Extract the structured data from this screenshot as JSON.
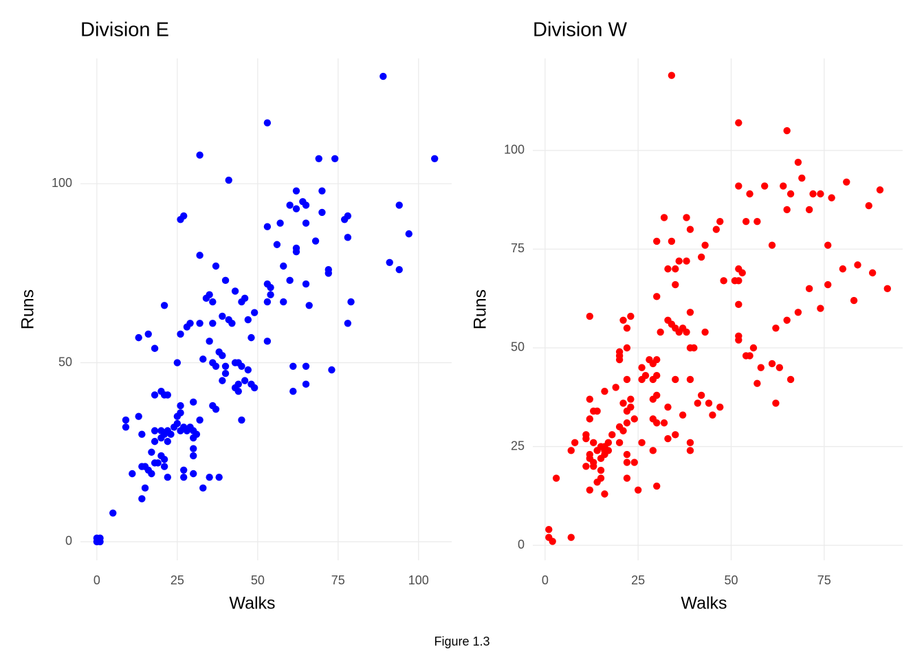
{
  "chart_data": [
    {
      "type": "scatter",
      "title": "Division E",
      "x_label": "Walks",
      "y_label": "Runs",
      "color": "#0000ff",
      "xlim": [
        -5.1,
        110.3
      ],
      "ylim": [
        -5.2,
        135
      ],
      "xticks": [
        0,
        25,
        50,
        75,
        100
      ],
      "yticks": [
        0,
        50,
        100
      ],
      "grid": true,
      "x": [
        89,
        53,
        105,
        32,
        69,
        74,
        41,
        62,
        70,
        94,
        60,
        62,
        64,
        65,
        70,
        97,
        53,
        57,
        65,
        78,
        77,
        26,
        27,
        68,
        78,
        56,
        62,
        62,
        91,
        94,
        32,
        37,
        58,
        72,
        72,
        40,
        53,
        54,
        60,
        65,
        43,
        54,
        53,
        58,
        46,
        45,
        34,
        35,
        36,
        79,
        66,
        21,
        39,
        41,
        47,
        49,
        36,
        42,
        32,
        29,
        28,
        78,
        13,
        16,
        26,
        35,
        48,
        53,
        18,
        38,
        39,
        33,
        36,
        44,
        45,
        43,
        25,
        37,
        40,
        40,
        61,
        65,
        73,
        47,
        39,
        46,
        48,
        49,
        44,
        43,
        44,
        65,
        61,
        18,
        20,
        21,
        22,
        30,
        26,
        26,
        36,
        37,
        25,
        32,
        45,
        9,
        9,
        13,
        25,
        27,
        28,
        24,
        18,
        20,
        22,
        21,
        23,
        26,
        29,
        30,
        31,
        30,
        14,
        20,
        22,
        18,
        30,
        30,
        17,
        20,
        21,
        19,
        18,
        15,
        16,
        21,
        22,
        17,
        14,
        11,
        27,
        27,
        30,
        35,
        38,
        33,
        15,
        14,
        5,
        0,
        1,
        0,
        1
      ],
      "values": [
        130,
        117,
        107,
        108,
        107,
        107,
        101,
        98,
        98,
        94,
        94,
        93,
        95,
        94,
        92,
        86,
        88,
        89,
        89,
        91,
        90,
        90,
        91,
        84,
        85,
        83,
        82,
        81,
        78,
        76,
        80,
        77,
        77,
        76,
        75,
        73,
        72,
        71,
        73,
        72,
        70,
        69,
        67,
        67,
        68,
        67,
        68,
        69,
        67,
        67,
        66,
        66,
        63,
        62,
        62,
        64,
        61,
        61,
        61,
        61,
        60,
        61,
        57,
        58,
        58,
        56,
        57,
        56,
        54,
        53,
        52,
        51,
        50,
        50,
        49,
        50,
        50,
        49,
        47,
        49,
        49,
        49,
        48,
        48,
        45,
        45,
        44,
        43,
        44,
        43,
        42,
        44,
        42,
        41,
        42,
        41,
        41,
        39,
        38,
        36,
        38,
        37,
        35,
        34,
        34,
        34,
        32,
        35,
        33,
        32,
        31,
        32,
        31,
        31,
        31,
        30,
        30,
        31,
        32,
        31,
        30,
        29,
        30,
        29,
        28,
        28,
        26,
        24,
        25,
        24,
        23,
        22,
        22,
        21,
        20,
        21,
        18,
        19,
        21,
        19,
        20,
        18,
        19,
        18,
        18,
        15,
        15,
        12,
        8,
        1,
        1,
        0,
        0
      ]
    },
    {
      "type": "scatter",
      "title": "Division W",
      "x_label": "Walks",
      "y_label": "Runs",
      "color": "#ff0000",
      "xlim": [
        -3.3,
        96.1
      ],
      "ylim": [
        -3.8,
        123.3
      ],
      "xticks": [
        0,
        25,
        50,
        75
      ],
      "yticks": [
        0,
        25,
        50,
        75,
        100
      ],
      "grid": true,
      "x": [
        34,
        52,
        65,
        68,
        69,
        59,
        52,
        64,
        66,
        72,
        74,
        77,
        81,
        90,
        55,
        87,
        65,
        71,
        54,
        57,
        47,
        46,
        32,
        38,
        39,
        30,
        34,
        43,
        61,
        76,
        38,
        42,
        35,
        33,
        36,
        84,
        80,
        88,
        52,
        53,
        52,
        51,
        48,
        76,
        71,
        92,
        35,
        30,
        83,
        74,
        52,
        68,
        39,
        12,
        23,
        21,
        22,
        33,
        34,
        35,
        36,
        37,
        38,
        43,
        31,
        65,
        62,
        52,
        52,
        56,
        55,
        54,
        39,
        40,
        22,
        20,
        20,
        20,
        58,
        61,
        63,
        66,
        28,
        30,
        29,
        26,
        27,
        26,
        22,
        29,
        30,
        35,
        39,
        57,
        19,
        16,
        12,
        23,
        30,
        29,
        21,
        23,
        22,
        33,
        41,
        42,
        44,
        47,
        37,
        45,
        62,
        29,
        30,
        32,
        13,
        14,
        12,
        22,
        24,
        21,
        20,
        18,
        11,
        11,
        8,
        7,
        13,
        20,
        26,
        39,
        39,
        29,
        33,
        35,
        17,
        15,
        16,
        14,
        16,
        12,
        12,
        13,
        15,
        16,
        17,
        22,
        24,
        22,
        11,
        13,
        15,
        15,
        14,
        22,
        12,
        16,
        25,
        30,
        3,
        1,
        1,
        2,
        7
      ],
      "values": [
        119,
        107,
        105,
        97,
        93,
        91,
        91,
        91,
        89,
        89,
        89,
        88,
        92,
        90,
        89,
        86,
        85,
        85,
        82,
        82,
        82,
        80,
        83,
        83,
        80,
        77,
        77,
        76,
        76,
        76,
        72,
        73,
        70,
        70,
        72,
        71,
        70,
        69,
        70,
        69,
        67,
        67,
        67,
        66,
        65,
        65,
        66,
        63,
        62,
        60,
        61,
        59,
        59,
        58,
        58,
        57,
        55,
        57,
        56,
        55,
        54,
        55,
        54,
        54,
        54,
        57,
        55,
        53,
        52,
        50,
        48,
        48,
        50,
        50,
        50,
        49,
        48,
        47,
        45,
        46,
        45,
        42,
        47,
        47,
        46,
        45,
        43,
        42,
        42,
        42,
        43,
        42,
        42,
        41,
        40,
        39,
        37,
        37,
        38,
        37,
        36,
        35,
        34,
        35,
        36,
        38,
        36,
        35,
        33,
        33,
        36,
        32,
        31,
        31,
        34,
        34,
        32,
        31,
        32,
        29,
        30,
        28,
        28,
        27,
        26,
        24,
        26,
        26,
        26,
        26,
        24,
        24,
        27,
        28,
        26,
        25,
        24,
        24,
        23,
        23,
        22,
        21,
        22,
        25,
        24,
        23,
        21,
        21,
        20,
        20,
        19,
        17,
        16,
        17,
        14,
        13,
        14,
        15,
        17,
        4,
        2,
        1,
        2
      ]
    }
  ],
  "caption": "Figure 1.3"
}
